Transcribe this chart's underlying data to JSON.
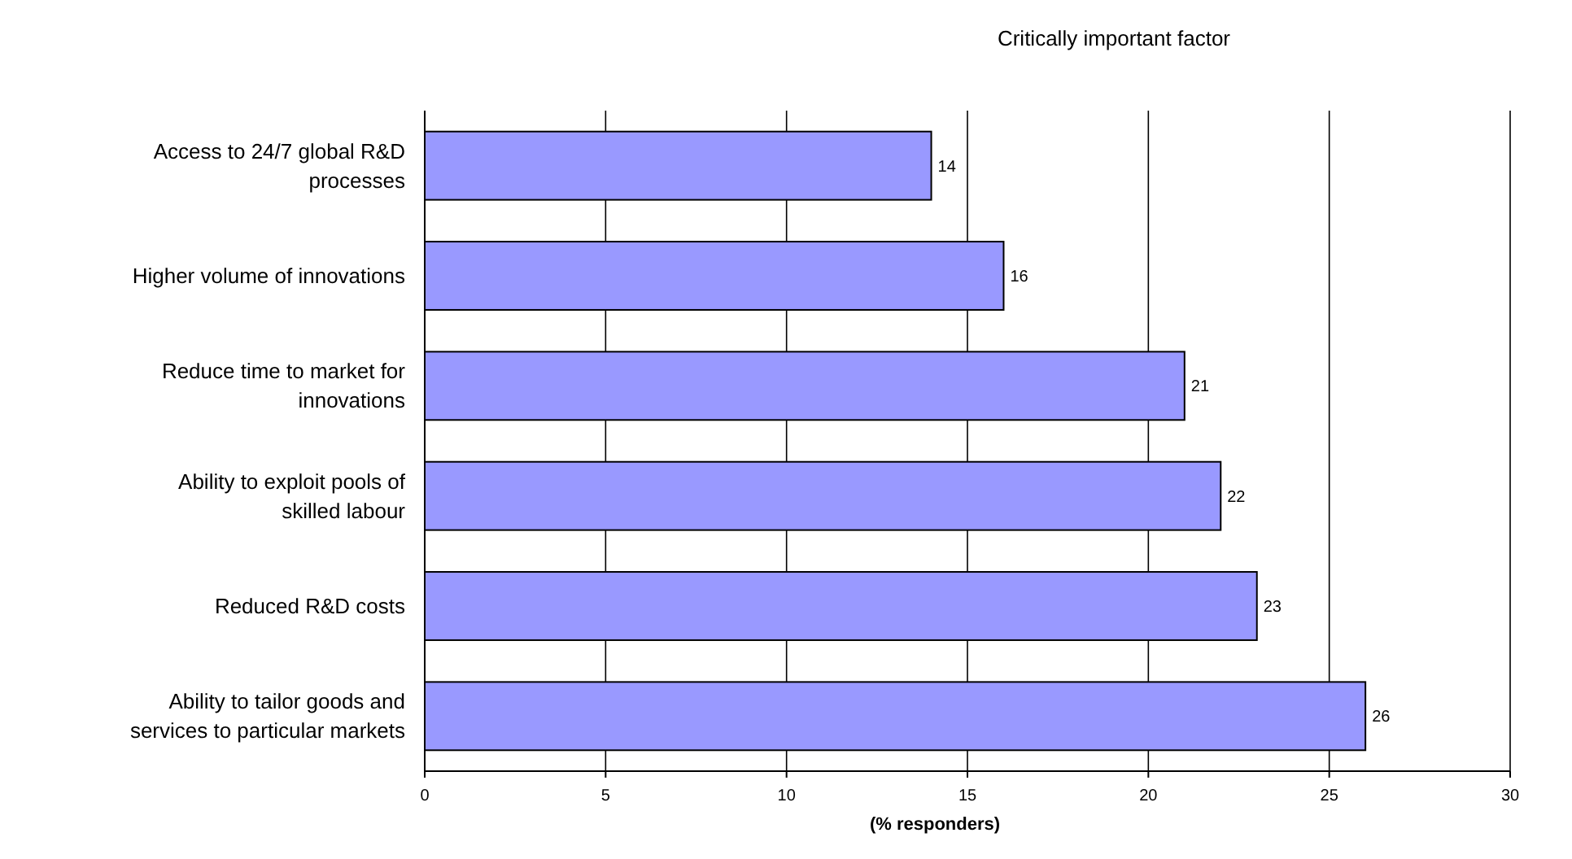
{
  "chart_data": {
    "type": "bar",
    "orientation": "horizontal",
    "title": "Critically important factor",
    "xlabel": "(% responders)",
    "categories": [
      "Access to 24/7 global R&D processes",
      "Higher volume of innovations",
      "Reduce time to market for innovations",
      "Ability to exploit pools of skilled labour",
      "Reduced R&D costs",
      "Ability to tailor goods and services to particular markets"
    ],
    "values": [
      14,
      16,
      21,
      22,
      23,
      26
    ],
    "color": "#9999ff",
    "data_labels": true,
    "grid": "x",
    "xlim": [
      0,
      30
    ],
    "xticks": [
      0,
      5,
      10,
      15,
      20,
      25,
      30
    ]
  }
}
